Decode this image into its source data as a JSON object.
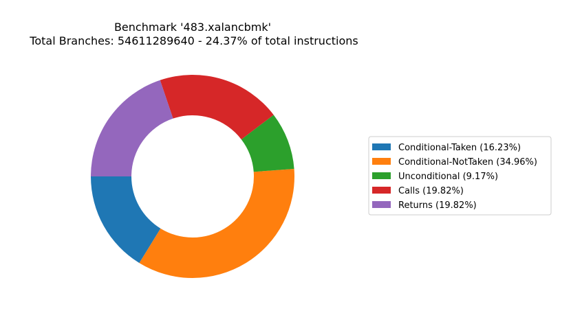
{
  "chart_data": {
    "type": "pie",
    "donut": true,
    "title_lines": [
      "Benchmark '483.xalancbmk'",
      "Total Branches: 54611289640 - 24.37% of total instructions"
    ],
    "start_angle_deg": 180,
    "direction": "counterclockwise",
    "legend_position": "right",
    "slices": [
      {
        "label": "Conditional-Taken (16.23%)",
        "value": 16.23,
        "color": "#1f77b4"
      },
      {
        "label": "Conditional-NotTaken (34.96%)",
        "value": 34.96,
        "color": "#ff7f0e"
      },
      {
        "label": "Unconditional (9.17%)",
        "value": 9.17,
        "color": "#2ca02c"
      },
      {
        "label": "Calls (19.82%)",
        "value": 19.82,
        "color": "#d62728"
      },
      {
        "label": "Returns (19.82%)",
        "value": 19.82,
        "color": "#9467bd"
      }
    ]
  }
}
